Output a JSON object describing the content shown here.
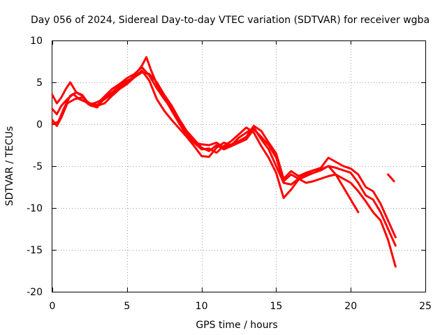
{
  "chart_data": {
    "type": "line",
    "title": "Day 056 of 2024, Sidereal Day-to-day VTEC variation (SDTVAR) for receiver wgba",
    "xlabel": "GPS time / hours",
    "ylabel": "SDTVAR / TECUs",
    "xlim": [
      0,
      25
    ],
    "ylim": [
      -20,
      10
    ],
    "xticks": [
      0,
      5,
      10,
      15,
      20,
      25
    ],
    "yticks": [
      10,
      5,
      0,
      -5,
      -10,
      -15,
      -20
    ],
    "grid": true,
    "legend": "none",
    "color": "#ff0000",
    "series": [
      {
        "name": "trace-1",
        "x": [
          0.0,
          0.3,
          0.6,
          0.9,
          1.2,
          1.6,
          2.0,
          2.4,
          2.8,
          3.2,
          3.6,
          4.0,
          4.5,
          5.0,
          5.5,
          6.0,
          6.5,
          7.0,
          7.5,
          8.0,
          8.5,
          9.0,
          9.5,
          10.0,
          10.5,
          11.0,
          11.5,
          12.0,
          12.5,
          13.0,
          13.5,
          14.0,
          14.5,
          15.0,
          15.5,
          16.0,
          16.5,
          17.0,
          17.5,
          18.0,
          18.5,
          19.0,
          19.5,
          20.0,
          20.5,
          21.0,
          21.5,
          22.0,
          22.5,
          23.0
        ],
        "y": [
          3.5,
          2.5,
          3.2,
          4.2,
          5.0,
          3.8,
          3.4,
          2.4,
          2.5,
          2.8,
          3.5,
          4.2,
          4.8,
          5.5,
          6.0,
          6.8,
          5.8,
          4.3,
          3.0,
          1.8,
          0.2,
          -1.0,
          -2.2,
          -2.4,
          -2.5,
          -2.2,
          -2.8,
          -2.4,
          -2.0,
          -1.5,
          -0.2,
          -0.8,
          -2.2,
          -3.5,
          -6.5,
          -5.6,
          -6.2,
          -5.8,
          -5.5,
          -5.2,
          -4.0,
          -4.5,
          -5.0,
          -5.3,
          -6.0,
          -7.5,
          -8.0,
          -9.5,
          -11.5,
          -13.5
        ]
      },
      {
        "name": "trace-2",
        "x": [
          0.0,
          0.3,
          0.6,
          1.0,
          1.4,
          1.8,
          2.2,
          2.6,
          3.0,
          3.5,
          4.0,
          4.5,
          5.0,
          5.5,
          6.0,
          6.5,
          7.0,
          7.5,
          8.0,
          8.5,
          9.0,
          9.5,
          10.0,
          10.5,
          11.0,
          11.5,
          12.0,
          12.5,
          13.0,
          13.5,
          14.0,
          14.5,
          15.0,
          15.5,
          16.0,
          16.5,
          17.0,
          17.5,
          18.0,
          18.5,
          19.0,
          19.5,
          20.0,
          20.5,
          21.0,
          21.5,
          22.0,
          22.5,
          23.0
        ],
        "y": [
          1.8,
          1.2,
          2.2,
          3.0,
          3.6,
          3.0,
          2.7,
          2.2,
          2.2,
          2.5,
          3.4,
          4.2,
          4.8,
          5.6,
          6.2,
          6.0,
          5.0,
          3.5,
          2.2,
          0.6,
          -0.8,
          -1.8,
          -2.8,
          -3.2,
          -2.5,
          -3.0,
          -2.6,
          -2.2,
          -1.8,
          -0.6,
          -1.5,
          -2.5,
          -4.0,
          -6.8,
          -6.0,
          -6.5,
          -6.0,
          -5.8,
          -5.5,
          -5.0,
          -5.2,
          -5.5,
          -5.8,
          -7.0,
          -8.5,
          -9.0,
          -10.5,
          -12.5,
          -14.5
        ]
      },
      {
        "name": "trace-3",
        "x": [
          0.0,
          0.4,
          0.8,
          1.2,
          1.6,
          2.0,
          2.5,
          3.0,
          3.5,
          4.0,
          4.5,
          5.0,
          5.5,
          6.0,
          6.5,
          7.0,
          7.5,
          8.0,
          8.5,
          9.0,
          9.5,
          10.0,
          10.5,
          11.0,
          11.5,
          12.0,
          12.5,
          13.0,
          13.5,
          14.0,
          14.5,
          15.0,
          15.5,
          16.0,
          16.5,
          17.0,
          17.5,
          18.0,
          18.5,
          19.0,
          19.5,
          20.0,
          20.5,
          21.0,
          21.5,
          22.0,
          22.5,
          23.0
        ],
        "y": [
          0.0,
          0.3,
          2.0,
          3.4,
          3.8,
          3.5,
          2.3,
          2.0,
          3.2,
          3.8,
          4.6,
          5.2,
          5.6,
          6.4,
          5.2,
          3.0,
          1.6,
          0.5,
          -0.5,
          -1.5,
          -2.6,
          -3.8,
          -3.9,
          -2.8,
          -2.2,
          -2.5,
          -1.6,
          -1.0,
          -0.4,
          -1.8,
          -3.0,
          -5.0,
          -7.0,
          -7.2,
          -6.5,
          -7.0,
          -6.8,
          -6.5,
          -6.2,
          -6.0,
          -6.5,
          -7.0,
          -8.0,
          -9.2,
          -10.5,
          -11.5,
          -13.8,
          -17.0
        ]
      },
      {
        "name": "trace-4",
        "x": [
          0.0,
          0.3,
          0.6,
          1.0,
          1.5,
          2.0,
          2.5,
          3.0,
          3.5,
          4.0,
          4.5,
          5.0,
          5.5,
          6.0,
          6.3,
          6.6,
          7.0,
          7.5,
          8.0,
          8.5,
          9.0,
          9.5,
          10.0,
          10.5,
          11.0,
          11.5,
          12.0,
          12.5,
          13.0,
          13.5,
          14.0,
          14.5,
          15.0,
          15.5,
          16.0,
          16.5,
          17.0,
          17.5,
          18.0,
          18.5,
          19.0,
          19.5,
          20.0,
          20.5
        ],
        "y": [
          0.5,
          -0.2,
          0.8,
          2.5,
          3.0,
          3.2,
          2.5,
          2.3,
          3.0,
          3.6,
          4.3,
          5.0,
          5.8,
          7.0,
          8.0,
          6.5,
          4.8,
          3.2,
          1.6,
          0.1,
          -1.3,
          -2.2,
          -3.0,
          -2.9,
          -3.4,
          -2.6,
          -2.0,
          -1.2,
          -0.4,
          -1.0,
          -2.6,
          -4.0,
          -5.8,
          -8.8,
          -7.8,
          -6.6,
          -6.2,
          -5.8,
          -5.4,
          -5.0,
          -6.0,
          -7.5,
          -9.0,
          -10.5
        ]
      },
      {
        "name": "trace-5",
        "x": [
          22.5,
          22.9
        ],
        "y": [
          -6.0,
          -6.8
        ]
      }
    ]
  }
}
